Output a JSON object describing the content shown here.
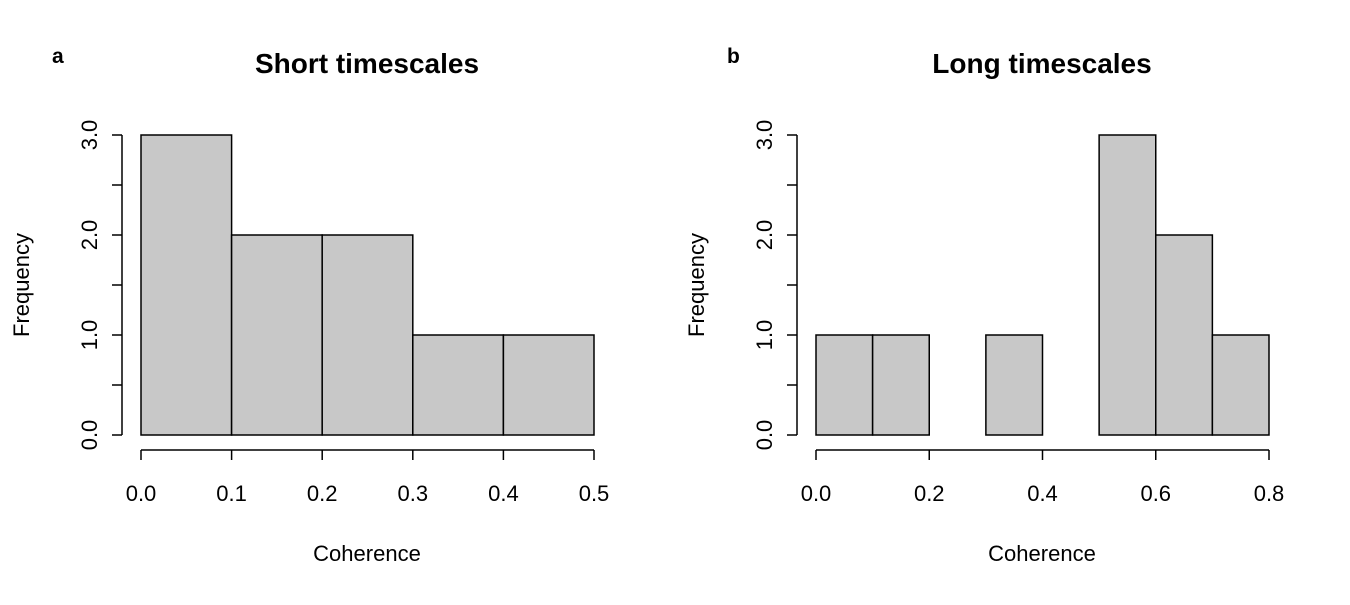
{
  "chart_data": [
    {
      "type": "bar",
      "panel": "a",
      "title": "Short timescales",
      "xlabel": "Coherence",
      "ylabel": "Frequency",
      "bins": [
        [
          0.0,
          0.1
        ],
        [
          0.1,
          0.2
        ],
        [
          0.2,
          0.3
        ],
        [
          0.3,
          0.4
        ],
        [
          0.4,
          0.5
        ]
      ],
      "values": [
        3,
        2,
        2,
        1,
        1
      ],
      "xlim": [
        0.0,
        0.5
      ],
      "ylim": [
        0,
        3
      ],
      "xticks": [
        "0.0",
        "0.1",
        "0.2",
        "0.3",
        "0.4",
        "0.5"
      ],
      "yticks": [
        "0.0",
        "1.0",
        "2.0",
        "3.0"
      ],
      "ytick_minor": [
        0.5,
        1.5,
        2.5
      ],
      "bar_color": "#c8c8c8",
      "grid": false
    },
    {
      "type": "bar",
      "panel": "b",
      "title": "Long timescales",
      "xlabel": "Coherence",
      "ylabel": "Frequency",
      "bins": [
        [
          0.0,
          0.1
        ],
        [
          0.1,
          0.2
        ],
        [
          0.2,
          0.3
        ],
        [
          0.3,
          0.4
        ],
        [
          0.4,
          0.5
        ],
        [
          0.5,
          0.6
        ],
        [
          0.6,
          0.7
        ],
        [
          0.7,
          0.8
        ]
      ],
      "values": [
        1,
        1,
        0,
        1,
        0,
        3,
        2,
        1
      ],
      "xlim": [
        0.0,
        0.8
      ],
      "ylim": [
        0,
        3
      ],
      "xticks": [
        "0.0",
        "0.2",
        "0.4",
        "0.6",
        "0.8"
      ],
      "yticks": [
        "0.0",
        "1.0",
        "2.0",
        "3.0"
      ],
      "ytick_minor": [
        0.5,
        1.5,
        2.5
      ],
      "bar_color": "#c8c8c8",
      "grid": false
    }
  ]
}
